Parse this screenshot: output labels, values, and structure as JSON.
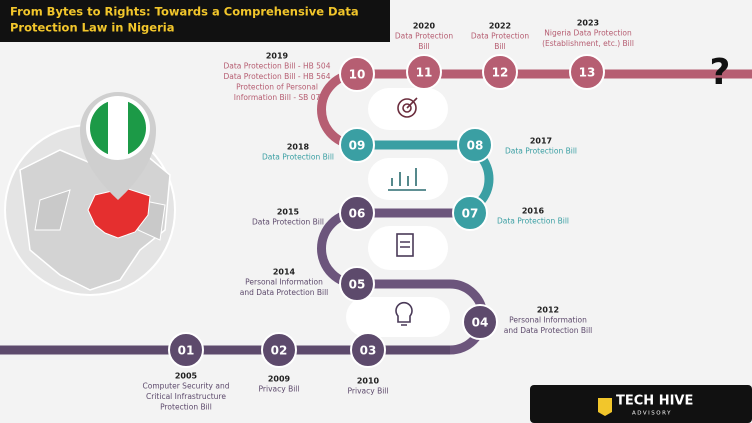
{
  "header": {
    "title": [
      "From Bytes to Rights: Towards a Comprehensive Data",
      "Protection Law in Nigeria"
    ]
  },
  "milestones": [
    {
      "number": "01",
      "year": "2005",
      "label": [
        "Computer Security and",
        "Critical Infrastructure",
        "Protection Bill"
      ]
    },
    {
      "number": "02",
      "year": "2009",
      "label": [
        "Privacy Bill"
      ]
    },
    {
      "number": "03",
      "year": "2010",
      "label": [
        "Privacy Bill"
      ]
    },
    {
      "number": "04",
      "year": "2012",
      "label": [
        "Personal Information",
        "and Data Protection Bill"
      ]
    },
    {
      "number": "05",
      "year": "2014",
      "label": [
        "Personal Information",
        "and Data Protection Bill"
      ]
    },
    {
      "number": "06",
      "year": "2015",
      "label": [
        "Data Protection Bill"
      ]
    },
    {
      "number": "07",
      "year": "2016",
      "label": [
        "Data Protection Bill"
      ]
    },
    {
      "number": "08",
      "year": "2017",
      "label": [
        "Data Protection Bill"
      ]
    },
    {
      "number": "09",
      "year": "2018",
      "label": [
        "Data Protection Bill"
      ]
    },
    {
      "number": "10",
      "year": "2019",
      "label": [
        "Data Protection Bill - HB 504",
        "Data Protection Bill - HB 564",
        "Protection of Personal",
        "Information Bill - SB 07"
      ]
    },
    {
      "number": "11",
      "year": "2020",
      "label": [
        "Data Protection",
        "Bill"
      ]
    },
    {
      "number": "12",
      "year": "2022",
      "label": [
        "Data Protection",
        "Bill"
      ]
    },
    {
      "number": "13",
      "year": "2023",
      "label": [
        "Nigeria Data Protection",
        "(Establishment, etc.) Bill"
      ]
    }
  ],
  "question_mark": "?",
  "logo": {
    "name": "TECH HIVE",
    "tagline": "ADVISORY"
  }
}
